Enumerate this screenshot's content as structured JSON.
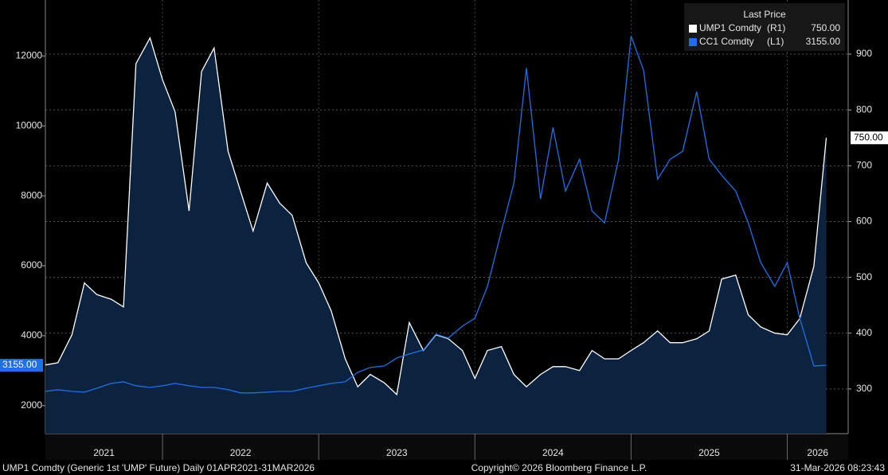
{
  "chart_data": {
    "type": "line",
    "legend_title": "Last Price",
    "legend": "upper right",
    "grid": "y2",
    "footer_left": "UMP1 Comdty (Generic 1st 'UMP' Future) Daily 01APR2021-31MAR2026",
    "footer_center": "Copyright© 2026 Bloomberg Finance L.P.",
    "footer_right": "31-Mar-2026 08:23:43",
    "x": [
      2021.25,
      2021.33,
      2021.42,
      2021.5,
      2021.58,
      2021.67,
      2021.75,
      2021.83,
      2021.92,
      2022,
      2022.08,
      2022.17,
      2022.25,
      2022.33,
      2022.42,
      2022.5,
      2022.58,
      2022.67,
      2022.75,
      2022.83,
      2022.92,
      2023,
      2023.08,
      2023.17,
      2023.25,
      2023.33,
      2023.42,
      2023.5,
      2023.58,
      2023.67,
      2023.75,
      2023.83,
      2023.92,
      2024,
      2024.08,
      2024.17,
      2024.25,
      2024.33,
      2024.42,
      2024.5,
      2024.58,
      2024.67,
      2024.75,
      2024.83,
      2024.92,
      2025,
      2025.08,
      2025.17,
      2025.25,
      2025.33,
      2025.42,
      2025.5,
      2025.58,
      2025.67,
      2025.75,
      2025.83,
      2025.92,
      2026,
      2026.08,
      2026.17,
      2026.25
    ],
    "xlim": [
      2021.25,
      2026.39
    ],
    "xticks": [
      2022,
      2023,
      2024,
      2025,
      2026
    ],
    "year_labels": [
      2021,
      2022,
      2023,
      2024,
      2025,
      2026
    ],
    "ylim": [
      1200,
      13600
    ],
    "yticks": [
      2000,
      4000,
      6000,
      8000,
      10000,
      12000
    ],
    "y2lim": [
      220,
      997
    ],
    "y2ticks": [
      300,
      400,
      500,
      600,
      700,
      800,
      900
    ],
    "series": [
      {
        "name": "UMP1 Comdty",
        "axis_label": "(R1)",
        "last_label": "750.00",
        "axis": "y2",
        "style": "area",
        "color": "#ffffff",
        "fill": "#0c2340",
        "values": [
          343,
          347,
          397,
          490,
          469,
          461,
          447,
          883,
          929,
          854,
          797,
          619,
          869,
          911,
          726,
          654,
          583,
          669,
          633,
          611,
          526,
          490,
          440,
          354,
          304,
          326,
          311,
          290,
          419,
          369,
          397,
          390,
          369,
          319,
          369,
          376,
          326,
          304,
          326,
          340,
          340,
          333,
          369,
          354,
          354,
          369,
          383,
          404,
          383,
          383,
          390,
          404,
          497,
          504,
          433,
          411,
          400,
          397,
          426,
          520,
          750
        ]
      },
      {
        "name": "CC1 Comdty",
        "axis_label": "(L1)",
        "last_label": "3155.00",
        "axis": "y",
        "style": "line",
        "color": "#1f6fe8",
        "values": [
          2409,
          2455,
          2409,
          2386,
          2500,
          2636,
          2682,
          2568,
          2523,
          2568,
          2636,
          2568,
          2523,
          2523,
          2455,
          2364,
          2364,
          2386,
          2409,
          2409,
          2500,
          2568,
          2636,
          2682,
          2955,
          3091,
          3136,
          3364,
          3477,
          3591,
          4045,
          3932,
          4273,
          4500,
          5409,
          7000,
          8364,
          11660,
          7909,
          9955,
          8136,
          9045,
          7568,
          7227,
          9045,
          12570,
          11591,
          8477,
          9045,
          9273,
          10977,
          9045,
          8591,
          8136,
          7227,
          6091,
          5409,
          6091,
          4500,
          3136,
          3155
        ]
      }
    ]
  }
}
